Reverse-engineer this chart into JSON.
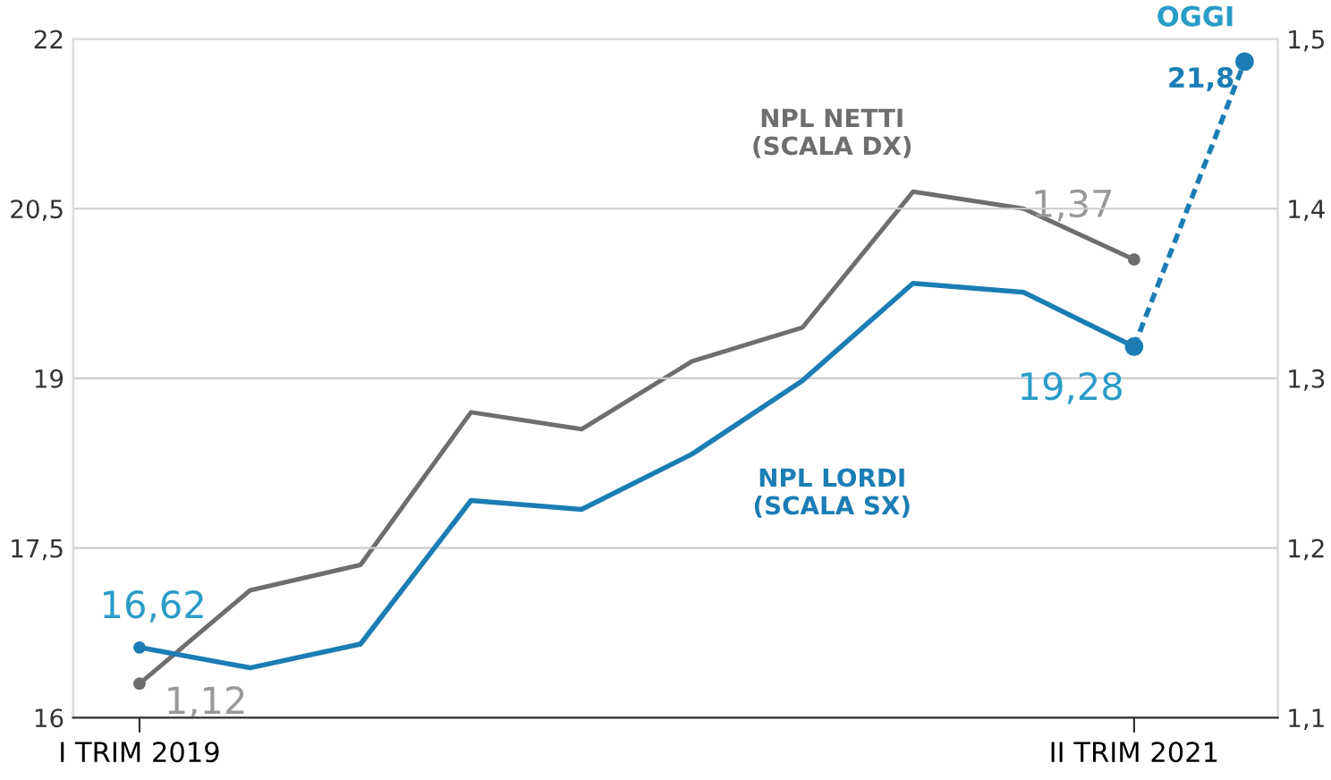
{
  "chart_data": {
    "type": "line",
    "categories": [
      "I TRIM 2019",
      null,
      null,
      null,
      null,
      null,
      null,
      null,
      null,
      "II TRIM 2021",
      null
    ],
    "series": [
      {
        "name": "NPL NETTI\n(SCALA DX)",
        "color": "#6e6e6e",
        "axis": "y2",
        "values": [
          1.12,
          1.175,
          1.19,
          1.28,
          1.27,
          1.31,
          1.33,
          1.41,
          1.4,
          1.37,
          null
        ],
        "value_labels": [
          "1,12",
          null,
          null,
          null,
          null,
          null,
          null,
          null,
          null,
          "1,37",
          null
        ]
      },
      {
        "name": "NPL LORDI\n(SCALA SX)",
        "color": "#1b7db4",
        "values": [
          16.62,
          16.44,
          16.65,
          17.92,
          17.84,
          18.33,
          18.98,
          19.84,
          19.76,
          19.28,
          null
        ],
        "value_labels": [
          "16,62",
          null,
          null,
          null,
          null,
          null,
          null,
          null,
          null,
          "19,28",
          null
        ]
      },
      {
        "color": "#1b7db4",
        "line_style": "dashed",
        "marker": "circle",
        "values": [
          null,
          null,
          null,
          null,
          null,
          null,
          null,
          null,
          null,
          19.28,
          21.8
        ],
        "value_labels": [
          null,
          null,
          null,
          null,
          null,
          null,
          null,
          null,
          null,
          null,
          "21,8"
        ]
      }
    ],
    "ylim": [
      16,
      22
    ],
    "yticks": [
      16,
      {
        "value": 17.5,
        "label": "17,5"
      },
      19,
      {
        "value": 20.5,
        "label": "20,5"
      },
      22
    ],
    "y2lim": [
      1.1,
      1.5
    ],
    "y2ticks": [
      {
        "value": 1.1,
        "label": "1,1"
      },
      {
        "value": 1.2,
        "label": "1,2"
      },
      {
        "value": 1.3,
        "label": "1,3"
      },
      {
        "value": 1.4,
        "label": "1,4"
      },
      {
        "value": 1.5,
        "label": "1,5"
      }
    ],
    "grid": "y",
    "legend": false,
    "annotations": [
      "OGGI"
    ]
  }
}
